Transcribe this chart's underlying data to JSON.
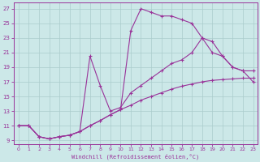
{
  "xlabel": "Windchill (Refroidissement éolien,°C)",
  "bg_color": "#cce8e8",
  "line_color": "#993399",
  "grid_color": "#aacccc",
  "xlim_min": -0.5,
  "xlim_max": 23.4,
  "ylim_min": 8.5,
  "ylim_max": 27.8,
  "yticks": [
    9,
    11,
    13,
    15,
    17,
    19,
    21,
    23,
    25,
    27
  ],
  "xticks": [
    0,
    1,
    2,
    3,
    4,
    5,
    6,
    7,
    8,
    9,
    10,
    11,
    12,
    13,
    14,
    15,
    16,
    17,
    18,
    19,
    20,
    21,
    22,
    23
  ],
  "line1_x": [
    0,
    1,
    2,
    3,
    4,
    5,
    6,
    7,
    8,
    9,
    10,
    11,
    12,
    13,
    14,
    15,
    16,
    17,
    18,
    19,
    20,
    21,
    22,
    23
  ],
  "line1_y": [
    11,
    11,
    9.5,
    9.2,
    9.5,
    9.7,
    10.2,
    11.0,
    11.7,
    12.5,
    13.2,
    13.8,
    14.5,
    15.0,
    15.5,
    16.0,
    16.4,
    16.7,
    17.0,
    17.2,
    17.3,
    17.4,
    17.5,
    17.5
  ],
  "line2_x": [
    0,
    1,
    2,
    3,
    4,
    5,
    6,
    7,
    8,
    9,
    10,
    11,
    12,
    13,
    14,
    15,
    16,
    17,
    18,
    19,
    20,
    21,
    22,
    23
  ],
  "line2_y": [
    11,
    11,
    9.5,
    9.2,
    9.5,
    9.7,
    10.2,
    20.5,
    16.5,
    13.0,
    13.5,
    15.5,
    16.5,
    17.5,
    18.5,
    19.5,
    20.0,
    21.0,
    23.0,
    21.0,
    20.5,
    19.0,
    18.5,
    18.5
  ],
  "line3_x": [
    0,
    1,
    2,
    3,
    4,
    5,
    6,
    7,
    8,
    9,
    10,
    11,
    12,
    13,
    14,
    15,
    16,
    17,
    18,
    19,
    20,
    21,
    22,
    23
  ],
  "line3_y": [
    11,
    11,
    9.5,
    9.2,
    9.5,
    9.7,
    10.2,
    11.0,
    11.7,
    12.5,
    13.2,
    24.0,
    27.0,
    26.5,
    26.0,
    26.0,
    25.5,
    25.0,
    23.0,
    22.5,
    20.5,
    19.0,
    18.5,
    17.0
  ]
}
